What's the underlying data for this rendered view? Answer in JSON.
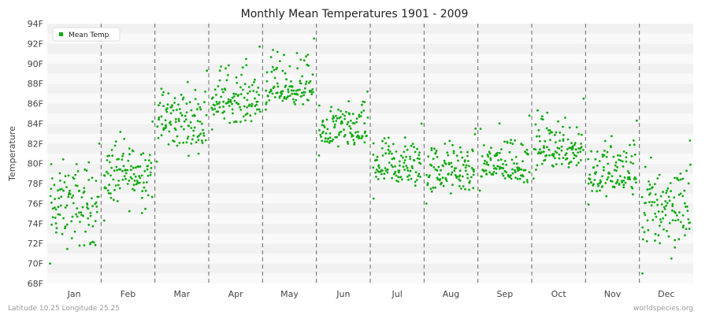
{
  "chart_data": {
    "type": "scatter",
    "title": "Monthly Mean Temperatures 1901 - 2009",
    "ylabel": "Temperature",
    "xlabel": "",
    "ylim": [
      68,
      94
    ],
    "y_ticks": [
      "68F",
      "70F",
      "72F",
      "74F",
      "76F",
      "78F",
      "80F",
      "82F",
      "84F",
      "86F",
      "88F",
      "90F",
      "92F",
      "94F"
    ],
    "categories": [
      "Jan",
      "Feb",
      "Mar",
      "Apr",
      "May",
      "Jun",
      "Jul",
      "Aug",
      "Sep",
      "Oct",
      "Nov",
      "Dec"
    ],
    "grid": "horizontal bands, dashed month dividers",
    "legend_position": "top-left",
    "series": [
      {
        "name": "Mean Temp",
        "color": "#11aa11",
        "points_per_month": 109,
        "month_summary": [
          {
            "month": "Jan",
            "low": 70.0,
            "high": 82.0,
            "typical": 75.8
          },
          {
            "month": "Feb",
            "low": 74.3,
            "high": 84.2,
            "typical": 79.0
          },
          {
            "month": "Mar",
            "low": 80.2,
            "high": 89.3,
            "typical": 84.3
          },
          {
            "month": "Apr",
            "low": 83.4,
            "high": 91.7,
            "typical": 86.2
          },
          {
            "month": "May",
            "low": 85.4,
            "high": 92.5,
            "typical": 87.3
          },
          {
            "month": "Jun",
            "low": 80.8,
            "high": 87.2,
            "typical": 83.2
          },
          {
            "month": "Jul",
            "low": 76.5,
            "high": 84.0,
            "typical": 79.7
          },
          {
            "month": "Aug",
            "low": 76.0,
            "high": 83.5,
            "typical": 79.2
          },
          {
            "month": "Sep",
            "low": 77.3,
            "high": 84.8,
            "typical": 79.7
          },
          {
            "month": "Oct",
            "low": 78.5,
            "high": 86.5,
            "typical": 81.6
          },
          {
            "month": "Nov",
            "low": 75.9,
            "high": 84.3,
            "typical": 78.8
          },
          {
            "month": "Dec",
            "low": 69.0,
            "high": 82.3,
            "typical": 75.8
          }
        ]
      }
    ]
  },
  "footer": {
    "location": "Latitude 10.25 Longitude 25.25",
    "credit": "worldspecies.org"
  }
}
